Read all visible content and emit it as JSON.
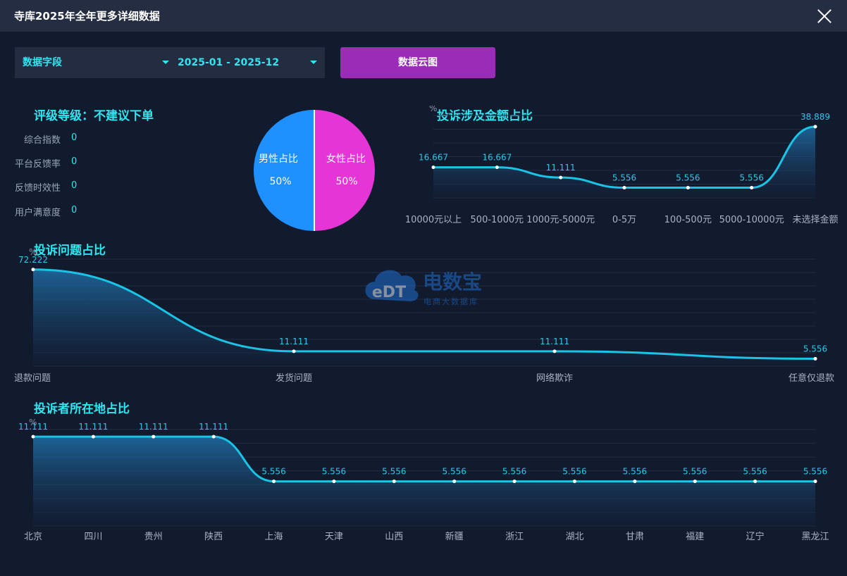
{
  "window": {
    "title": "寺库2025年全年更多详细数据"
  },
  "filters": {
    "field_label": "数据字段",
    "date_range": "2025-01 - 2025-12",
    "cloud_button": "数据云图"
  },
  "rating": {
    "title": "评级等级：不建议下单",
    "metrics": [
      {
        "label": "综合指数",
        "value": "0"
      },
      {
        "label": "平台反馈率",
        "value": "0"
      },
      {
        "label": "反馈时效性",
        "value": "0"
      },
      {
        "label": "用户满意度",
        "value": "0"
      }
    ]
  },
  "gender": {
    "male_label": "男性占比",
    "male_value": "50%",
    "female_label": "女性占比",
    "female_value": "50%",
    "male_color": "#1e90ff",
    "female_color": "#e535d6"
  },
  "watermark": {
    "brand": "电数宝",
    "sub": "电商大数据库",
    "logo_text": "eDT"
  },
  "chart_data": [
    {
      "type": "area",
      "title": "投诉涉及金额占比",
      "ylabel": "%",
      "categories": [
        "10000元以上",
        "500-1000元",
        "1000元-5000元",
        "0-5万",
        "100-500元",
        "5000-10000元",
        "未选择金额"
      ],
      "values": [
        16.667,
        16.667,
        11.111,
        5.556,
        5.556,
        5.556,
        38.889
      ],
      "labels": [
        "16.667",
        "16.667",
        "11.111",
        "5.556",
        "5.556",
        "5.556",
        "38.889"
      ],
      "ylim": [
        0,
        45
      ],
      "grid": true,
      "color": "#19c4e6"
    },
    {
      "type": "area",
      "title": "投诉问题占比",
      "ylabel": "%",
      "categories": [
        "退款问题",
        "发货问题",
        "网络欺诈",
        "任意仅退款"
      ],
      "values": [
        72.222,
        11.111,
        11.111,
        5.556
      ],
      "labels": [
        "72.222",
        "11.111",
        "11.111",
        "5.556"
      ],
      "ylim": [
        0,
        80
      ],
      "grid": true,
      "color": "#19c4e6"
    },
    {
      "type": "area",
      "title": "投诉者所在地占比",
      "ylabel": "%",
      "categories": [
        "北京",
        "四川",
        "贵州",
        "陕西",
        "上海",
        "天津",
        "山西",
        "新疆",
        "浙江",
        "湖北",
        "甘肃",
        "福建",
        "辽宁",
        "黑龙江"
      ],
      "values": [
        11.111,
        11.111,
        11.111,
        11.111,
        5.556,
        5.556,
        5.556,
        5.556,
        5.556,
        5.556,
        5.556,
        5.556,
        5.556,
        5.556
      ],
      "labels": [
        "11.111",
        "11.111",
        "11.111",
        "11.111",
        "5.556",
        "5.556",
        "5.556",
        "5.556",
        "5.556",
        "5.556",
        "5.556",
        "5.556",
        "5.556",
        "5.556"
      ],
      "ylim": [
        0,
        12
      ],
      "grid": true,
      "color": "#19c4e6"
    }
  ]
}
